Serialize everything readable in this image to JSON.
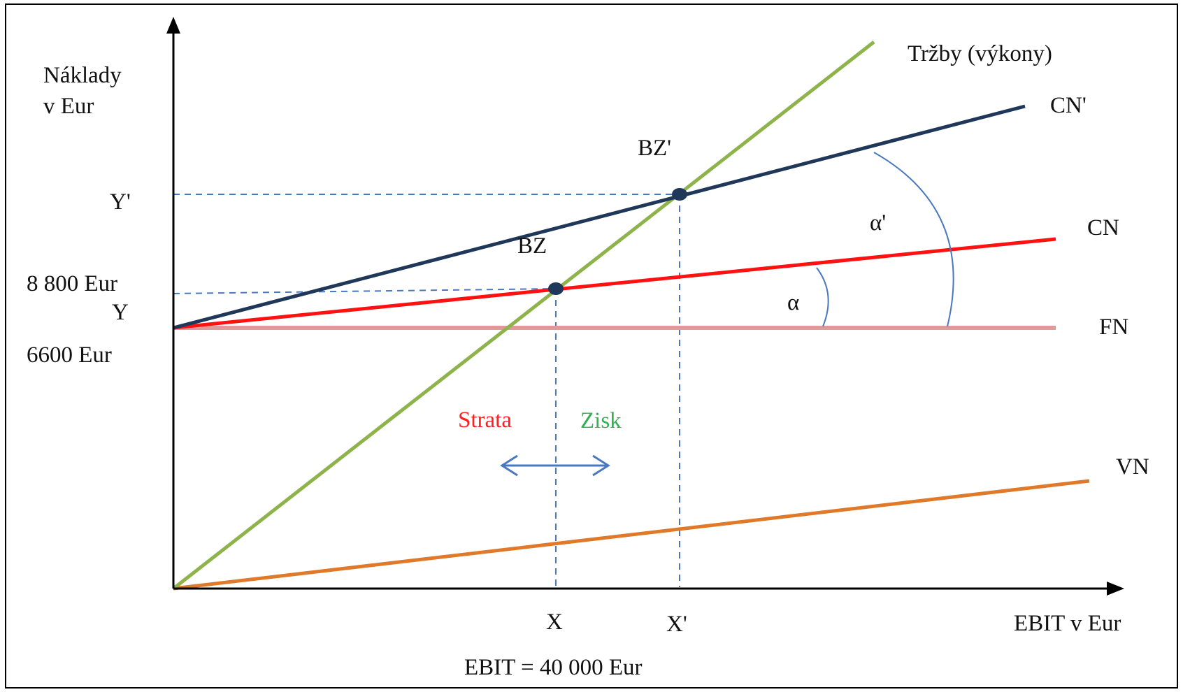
{
  "diagram": {
    "y_axis_label_line1": "Náklady",
    "y_axis_label_line2": "v Eur",
    "x_axis_label": "EBIT v Eur",
    "y_ticks": {
      "y_prime": "Y'",
      "eur_8800": "8 800 Eur",
      "y": "Y",
      "eur_6600": "6600 Eur"
    },
    "x_ticks": {
      "x": "X",
      "x_prime": "X'"
    },
    "line_labels": {
      "trzby": "Tržby (výkony)",
      "cn_prime": "CN'",
      "cn": "CN",
      "fn": "FN",
      "vn": "VN"
    },
    "points": {
      "bz": "BZ",
      "bz_prime": "BZ'"
    },
    "angles": {
      "alpha": "α",
      "alpha_prime": "α'"
    },
    "regions": {
      "strata": "Strata",
      "zisk": "Zisk"
    },
    "footer": "EBIT = 40 000 Eur",
    "colors": {
      "trzby": "#8db34a",
      "cn_prime": "#1f3758",
      "cn": "#ff1111",
      "fn": "#e09a9a",
      "vn": "#e07a2a",
      "guides": "#4a78bf",
      "strata": "#ff1f1f",
      "zisk": "#2fb24f",
      "axes": "#000000"
    }
  }
}
